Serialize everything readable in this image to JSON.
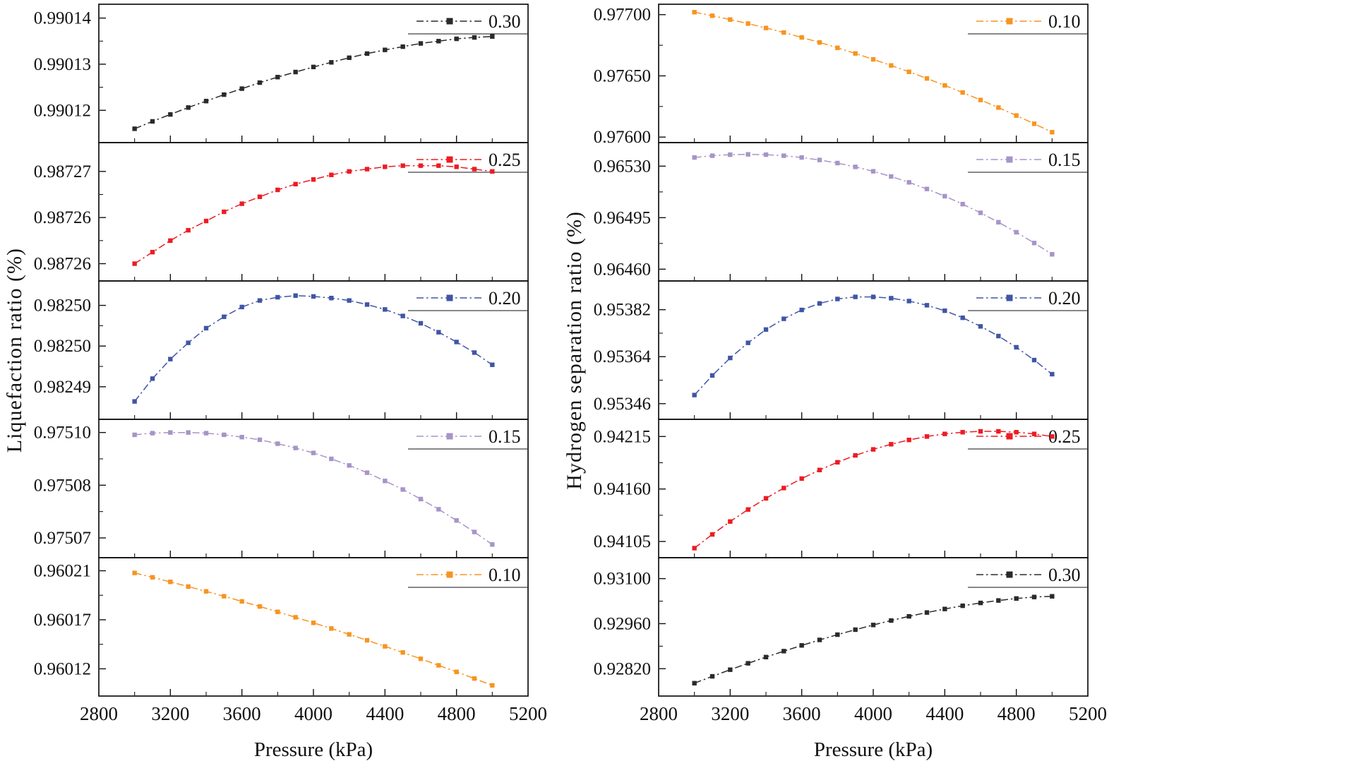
{
  "chart_data": {
    "type": "line",
    "xlabel": "Pressure (kPa)",
    "x_range": [
      2800,
      5200
    ],
    "x_ticks": [
      2800,
      3200,
      3600,
      4000,
      4400,
      4800,
      5200
    ],
    "x_values": [
      3000,
      3100,
      3200,
      3300,
      3400,
      3500,
      3600,
      3700,
      3800,
      3900,
      4000,
      4100,
      4200,
      4300,
      4400,
      4500,
      4600,
      4700,
      4800,
      4900,
      5000
    ],
    "legend_position": "top-right-inside",
    "grid": false,
    "columns": [
      {
        "ylabel": "Liquefaction ratio (%)",
        "panels": [
          {
            "legend": "0.30",
            "color": "#2a2a2a",
            "ylim": [
              0.990113,
              0.990143
            ],
            "yticks": [
              {
                "v": 0.99012,
                "label": "0.99012"
              },
              {
                "v": 0.99013,
                "label": "0.99013"
              },
              {
                "v": 0.99014,
                "label": "0.99014"
              }
            ],
            "values": [
              0.990116,
              0.9901176,
              0.9901191,
              0.9901206,
              0.990122,
              0.9901234,
              0.9901247,
              0.990126,
              0.9901272,
              0.9901283,
              0.9901294,
              0.9901304,
              0.9901314,
              0.9901323,
              0.9901331,
              0.9901338,
              0.9901345,
              0.990135,
              0.9901355,
              0.9901358,
              0.990136
            ]
          },
          {
            "legend": "0.25",
            "color": "#ec1c24",
            "ylim": [
              0.9872585,
              0.9872705
            ],
            "yticks": [
              {
                "v": 0.98726,
                "label": "0.98726"
              },
              {
                "v": 0.987264,
                "label": "0.98726"
              },
              {
                "v": 0.987268,
                "label": "0.98727"
              }
            ],
            "values": [
              0.98726,
              0.987261,
              0.987262,
              0.9872629,
              0.9872637,
              0.9872645,
              0.9872652,
              0.9872658,
              0.9872664,
              0.9872669,
              0.9872673,
              0.9872677,
              0.987268,
              0.9872682,
              0.9872684,
              0.9872685,
              0.9872685,
              0.9872685,
              0.9872684,
              0.9872682,
              0.987268
            ]
          },
          {
            "legend": "0.20",
            "color": "#4055a5",
            "ylim": [
              0.982489,
              0.982506
            ],
            "yticks": [
              {
                "v": 0.982493,
                "label": "0.98249"
              },
              {
                "v": 0.982498,
                "label": "0.98250"
              },
              {
                "v": 0.982503,
                "label": "0.98250"
              }
            ],
            "values": [
              0.9824912,
              0.982494,
              0.9824964,
              0.9824984,
              0.9825002,
              0.9825016,
              0.9825028,
              0.9825036,
              0.982504,
              0.9825042,
              0.9825041,
              0.9825039,
              0.9825036,
              0.9825031,
              0.9825025,
              0.9825017,
              0.9825008,
              0.9824997,
              0.9824985,
              0.9824972,
              0.9824957
            ]
          },
          {
            "legend": "0.15",
            "color": "#a794c8",
            "ylim": [
              0.975062,
              0.975104
            ],
            "yticks": [
              {
                "v": 0.975068,
                "label": "0.97507"
              },
              {
                "v": 0.975084,
                "label": "0.97508"
              },
              {
                "v": 0.9751,
                "label": "0.97510"
              }
            ],
            "values": [
              0.9750993,
              0.9750998,
              0.9751,
              0.9751,
              0.9750998,
              0.9750993,
              0.9750986,
              0.9750978,
              0.9750966,
              0.9750953,
              0.9750938,
              0.975092,
              0.97509,
              0.9750878,
              0.9750853,
              0.9750827,
              0.9750798,
              0.9750767,
              0.9750733,
              0.9750698,
              0.975066
            ]
          },
          {
            "legend": "0.10",
            "color": "#f79420",
            "ylim": [
              0.960095,
              0.960222
            ],
            "yticks": [
              {
                "v": 0.96012,
                "label": "0.96012"
              },
              {
                "v": 0.960165,
                "label": "0.96017"
              },
              {
                "v": 0.96021,
                "label": "0.96021"
              }
            ],
            "values": [
              0.960208,
              0.960204,
              0.9601998,
              0.9601955,
              0.9601911,
              0.9601866,
              0.9601819,
              0.9601772,
              0.9601723,
              0.9601673,
              0.9601622,
              0.960157,
              0.9601516,
              0.9601462,
              0.9601406,
              0.960135,
              0.9601292,
              0.9601232,
              0.9601172,
              0.9601111,
              0.9601048
            ]
          }
        ]
      },
      {
        "ylabel": "Hydrogen separation ratio (%)",
        "panels": [
          {
            "legend": "0.10",
            "color": "#f79420",
            "ylim": [
              0.975955,
              0.977085
            ],
            "yticks": [
              {
                "v": 0.976,
                "label": "0.97600"
              },
              {
                "v": 0.9765,
                "label": "0.97650"
              },
              {
                "v": 0.977,
                "label": "0.97700"
              }
            ],
            "values": [
              0.97702,
              0.976991,
              0.97696,
              0.976927,
              0.976891,
              0.976854,
              0.976814,
              0.976773,
              0.976729,
              0.976683,
              0.976635,
              0.976585,
              0.976533,
              0.976479,
              0.976422,
              0.976364,
              0.976303,
              0.976241,
              0.976176,
              0.976109,
              0.97604
            ]
          },
          {
            "legend": "0.15",
            "color": "#a794c8",
            "ylim": [
              0.96452,
              0.96546
            ],
            "yticks": [
              {
                "v": 0.9646,
                "label": "0.96460"
              },
              {
                "v": 0.96495,
                "label": "0.96495"
              },
              {
                "v": 0.9653,
                "label": "0.96530"
              }
            ],
            "values": [
              0.965359,
              0.965371,
              0.965378,
              0.96538,
              0.965378,
              0.965371,
              0.965359,
              0.965342,
              0.965321,
              0.965295,
              0.965265,
              0.96523,
              0.96519,
              0.965145,
              0.965096,
              0.965042,
              0.964983,
              0.964919,
              0.964851,
              0.964778,
              0.964701
            ]
          },
          {
            "legend": "0.20",
            "color": "#4055a5",
            "ylim": [
              0.9534,
              0.95393
            ],
            "yticks": [
              {
                "v": 0.95346,
                "label": "0.95346"
              },
              {
                "v": 0.95364,
                "label": "0.95364"
              },
              {
                "v": 0.95382,
                "label": "0.95382"
              }
            ],
            "values": [
              0.953493,
              0.953568,
              0.953635,
              0.953693,
              0.953744,
              0.953785,
              0.953819,
              0.953844,
              0.953861,
              0.953869,
              0.953869,
              0.953864,
              0.953853,
              0.953837,
              0.953816,
              0.953789,
              0.953756,
              0.953719,
              0.953676,
              0.953627,
              0.953573
            ]
          },
          {
            "legend": "0.25",
            "color": "#ec1c24",
            "ylim": [
              0.94088,
              0.94233
            ],
            "yticks": [
              {
                "v": 0.94105,
                "label": "0.94105"
              },
              {
                "v": 0.9416,
                "label": "0.94160"
              },
              {
                "v": 0.94215,
                "label": "0.94215"
              }
            ],
            "values": [
              0.94098,
              0.941124,
              0.941259,
              0.941385,
              0.941502,
              0.94161,
              0.941709,
              0.941799,
              0.94188,
              0.941952,
              0.942015,
              0.942069,
              0.942114,
              0.94215,
              0.942177,
              0.942195,
              0.942204,
              0.942204,
              0.942195,
              0.942177,
              0.94215
            ]
          },
          {
            "legend": "0.30",
            "color": "#2a2a2a",
            "ylim": [
              0.92735,
              0.93165
            ],
            "yticks": [
              {
                "v": 0.9282,
                "label": "0.92820"
              },
              {
                "v": 0.9296,
                "label": "0.92960"
              },
              {
                "v": 0.931,
                "label": "0.93100"
              }
            ],
            "values": [
              0.92775,
              0.927963,
              0.928169,
              0.928368,
              0.928561,
              0.928746,
              0.928924,
              0.929095,
              0.929258,
              0.929413,
              0.929559,
              0.929697,
              0.929827,
              0.929946,
              0.930056,
              0.930156,
              0.930244,
              0.93032,
              0.930382,
              0.930428,
              0.93045
            ]
          }
        ]
      }
    ]
  }
}
